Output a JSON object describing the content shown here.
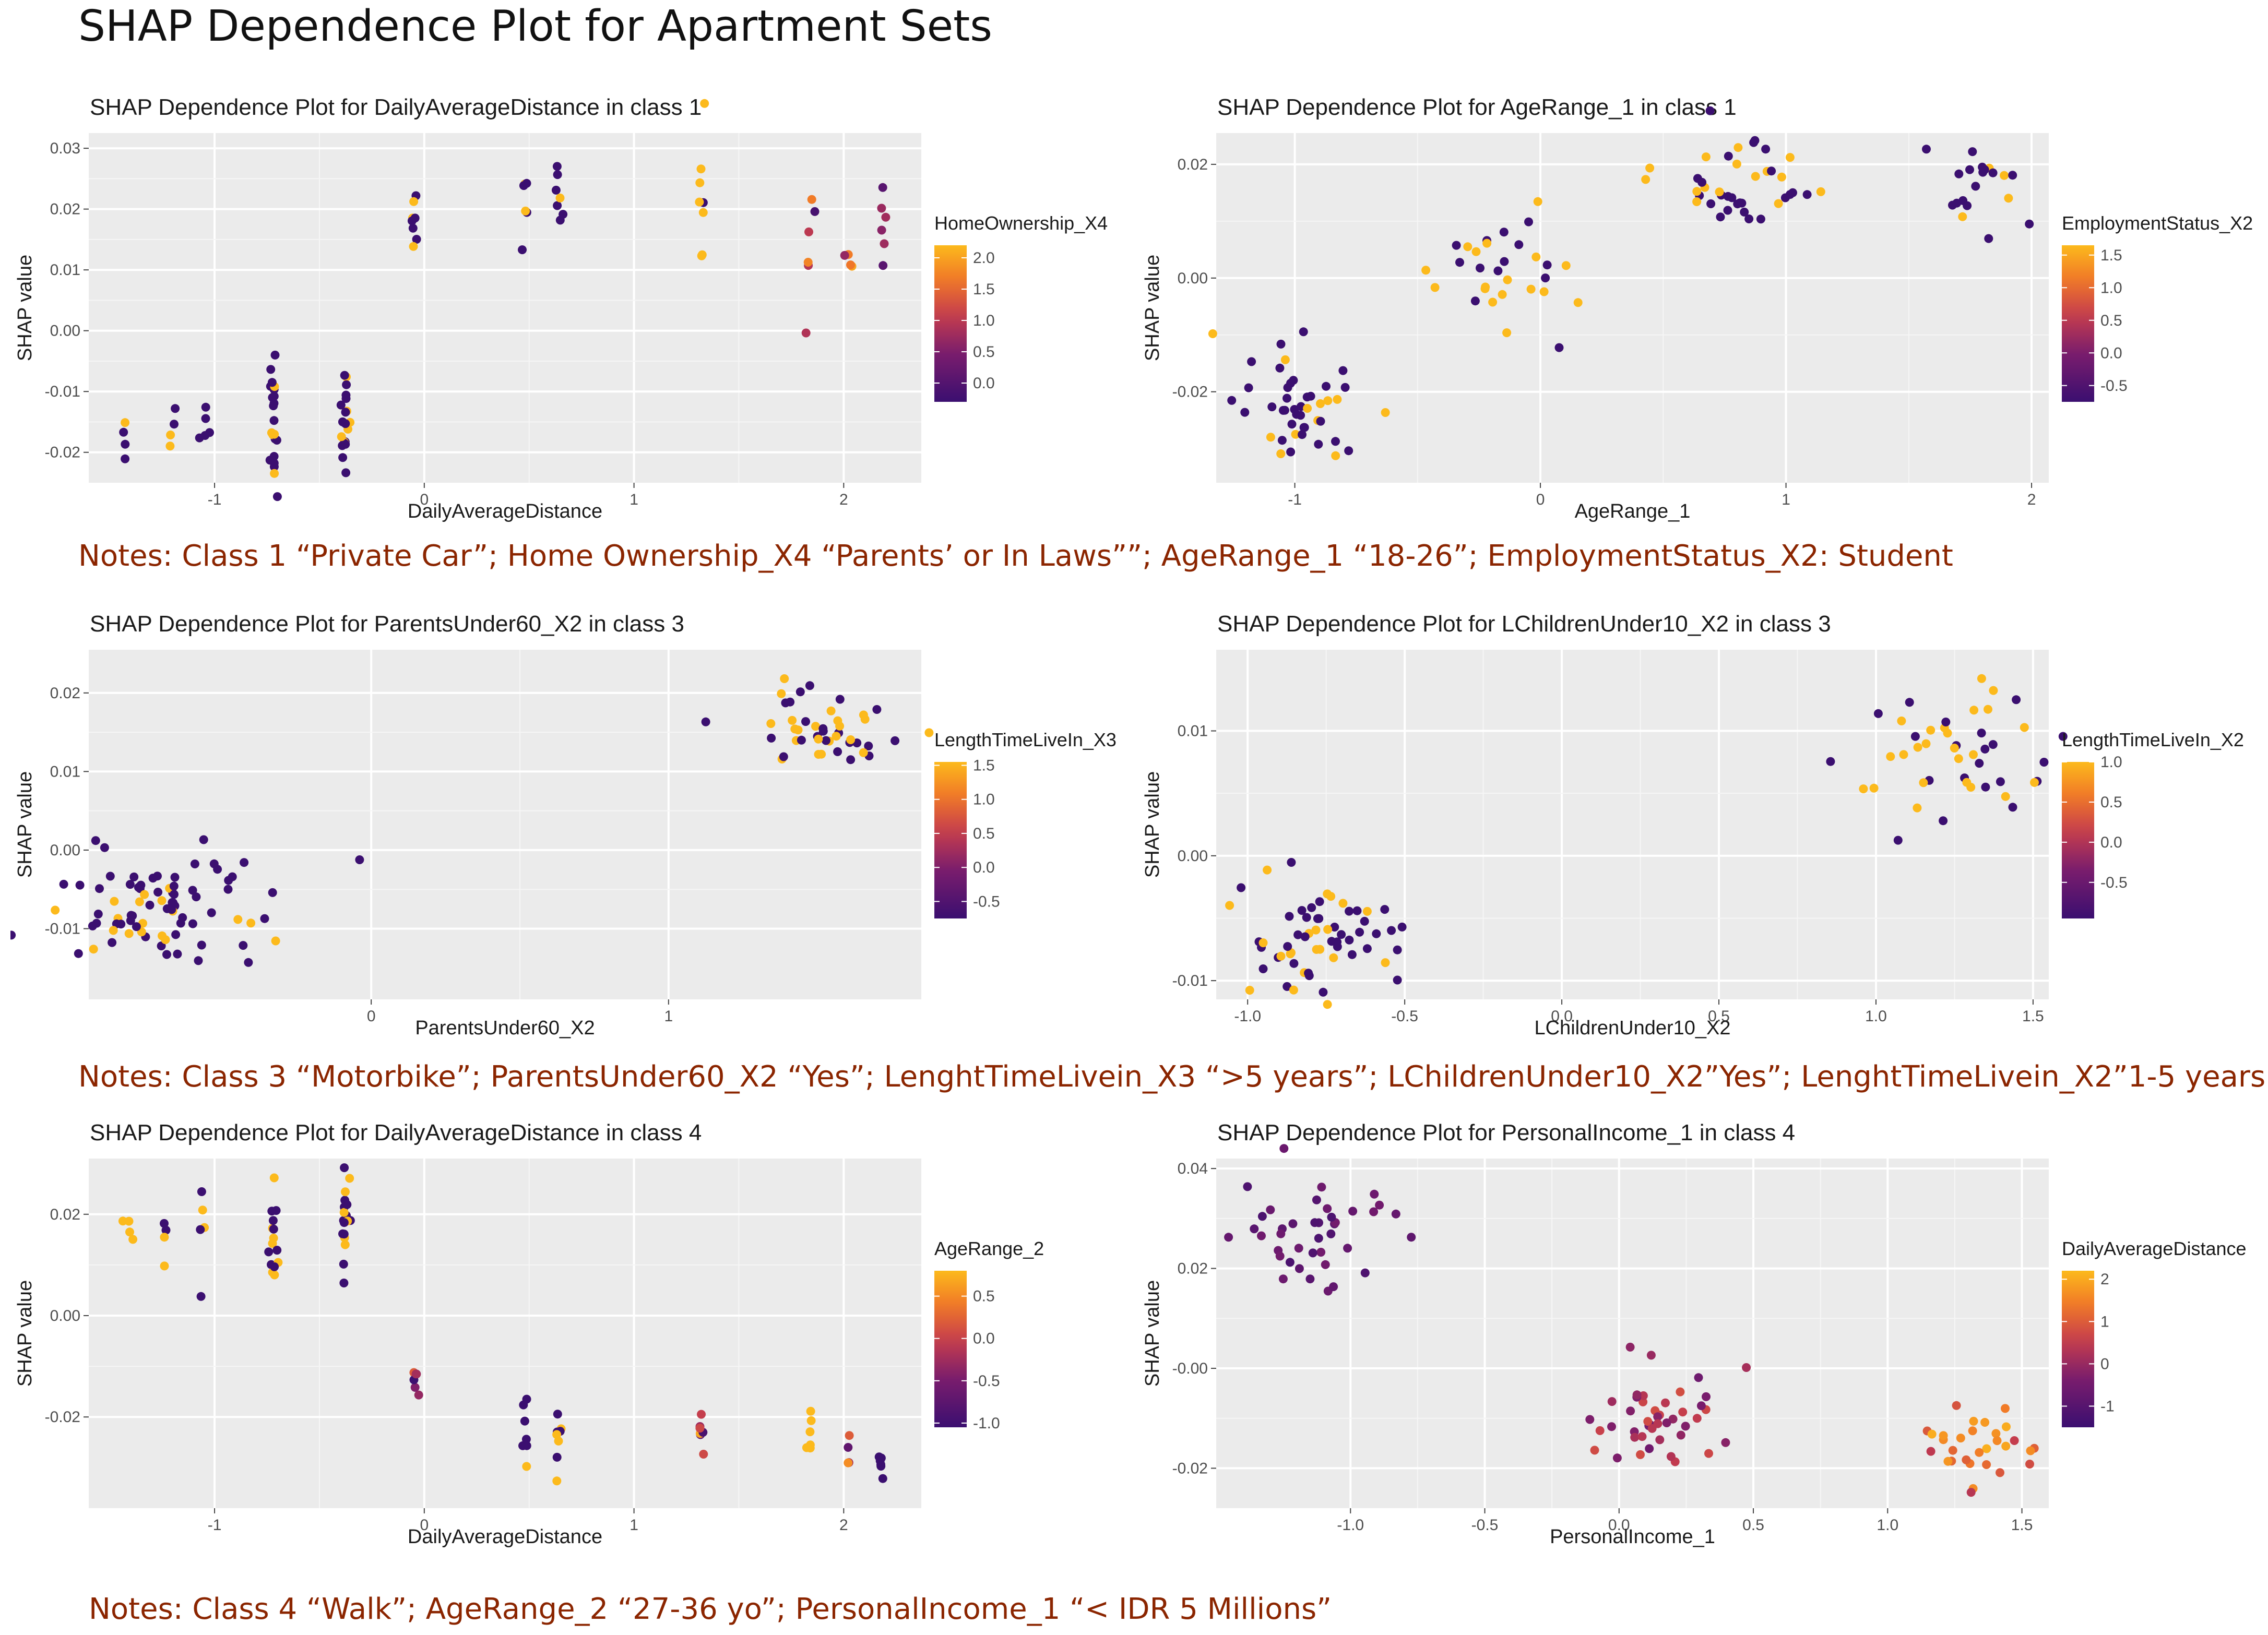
{
  "page": {
    "title": "SHAP Dependence Plot for Apartment Sets",
    "notes": [
      "Notes: Class 1 “Private Car”; Home Ownership_X4 “Parents’ or In Laws””; AgeRange_1 “18-26”; EmploymentStatus_X2: Student",
      "Notes: Class 3 “Motorbike”; ParentsUnder60_X2 “Yes”; LenghtTimeLivein_X3 “>5 years”; LChildrenUnder10_X2”Yes”; LenghtTimeLivein_X2”1-5 years”",
      "Notes: Class 4 “Walk”; AgeRange_2 “27-36 yo”; PersonalIncome_1 “< IDR 5 Millions”"
    ]
  },
  "colors": {
    "low": "#3b0f70",
    "mid": "#d1415a",
    "high": "#fbb61a",
    "panel_bg": "#ebebeb",
    "note": "#8b2500"
  },
  "chart_data": [
    {
      "type": "scatter",
      "title": "SHAP Dependence Plot for DailyAverageDistance in class 1",
      "xlabel": "DailyAverageDistance",
      "ylabel": "SHAP value",
      "xlim": [
        -1.6,
        2.37
      ],
      "ylim": [
        -0.025,
        0.0325
      ],
      "xticks": [
        -1,
        0,
        1,
        2
      ],
      "xtick_labels": [
        "-1",
        "0",
        "1",
        "2"
      ],
      "yticks": [
        -0.02,
        -0.01,
        0.0,
        0.01,
        0.02,
        0.03
      ],
      "ytick_labels": [
        "-0.02",
        "-0.01",
        "0.00",
        "0.01",
        "0.02",
        "0.03"
      ],
      "legend": {
        "title": "HomeOwnership_X4",
        "range": [
          -0.3,
          2.2
        ],
        "ticks": [
          0.0,
          0.5,
          1.0,
          1.5,
          2.0
        ],
        "tick_labels": [
          "0.0",
          "0.5",
          "1.0",
          "1.5",
          "2.0"
        ]
      },
      "clusters": [
        {
          "cx": -1.43,
          "cy": -0.017,
          "sx": 0.01,
          "sy": 0.003,
          "n": 4,
          "c": [
            -0.3,
            2.2
          ],
          "hf": 0.3
        },
        {
          "cx": -1.2,
          "cy": -0.0165,
          "sx": 0.01,
          "sy": 0.003,
          "n": 4,
          "c": [
            -0.3,
            2.2
          ],
          "hf": 0.3
        },
        {
          "cx": -1.05,
          "cy": -0.016,
          "sx": 0.01,
          "sy": 0.003,
          "n": 5,
          "c": [
            -0.3,
            2.2
          ],
          "hf": 0.1
        },
        {
          "cx": -0.72,
          "cy": -0.016,
          "sx": 0.01,
          "sy": 0.006,
          "n": 22,
          "c": [
            -0.3,
            2.2
          ],
          "hf": 0.15
        },
        {
          "cx": -0.38,
          "cy": -0.015,
          "sx": 0.01,
          "sy": 0.006,
          "n": 20,
          "c": [
            -0.3,
            2.2
          ],
          "hf": 0.2
        },
        {
          "cx": -0.04,
          "cy": 0.016,
          "sx": 0.01,
          "sy": 0.0035,
          "n": 8,
          "c": [
            -0.3,
            2.2
          ],
          "hf": 0.5
        },
        {
          "cx": 0.48,
          "cy": 0.017,
          "sx": 0.01,
          "sy": 0.0035,
          "n": 6,
          "c": [
            -0.3,
            2.2
          ],
          "hf": 0.4
        },
        {
          "cx": 0.64,
          "cy": 0.02,
          "sx": 0.01,
          "sy": 0.006,
          "n": 7,
          "c": [
            -0.3,
            2.2
          ],
          "hf": 0.1
        },
        {
          "cx": 1.32,
          "cy": 0.022,
          "sx": 0.01,
          "sy": 0.006,
          "n": 8,
          "c": [
            -0.3,
            2.2
          ],
          "hf": 0.8
        },
        {
          "cx": 1.84,
          "cy": 0.013,
          "sx": 0.01,
          "sy": 0.006,
          "n": 6,
          "c": [
            -0.3,
            2.2
          ],
          "hf": 0.0
        },
        {
          "cx": 2.03,
          "cy": 0.012,
          "sx": 0.01,
          "sy": 0.002,
          "n": 4,
          "c": [
            -0.3,
            2.2
          ],
          "hf": 0.0
        },
        {
          "cx": 2.18,
          "cy": 0.02,
          "sx": 0.01,
          "sy": 0.005,
          "n": 6,
          "c": [
            -0.3,
            2.2
          ],
          "hf": 0.0
        }
      ]
    },
    {
      "type": "scatter",
      "title": "SHAP Dependence Plot for AgeRange_1 in class 1",
      "xlabel": "AgeRange_1",
      "ylabel": "SHAP value",
      "xlim": [
        -1.32,
        2.07
      ],
      "ylim": [
        -0.036,
        0.0255
      ],
      "xticks": [
        -1,
        0,
        1,
        2
      ],
      "xtick_labels": [
        "-1",
        "0",
        "1",
        "2"
      ],
      "yticks": [
        -0.02,
        0.0,
        0.02
      ],
      "ytick_labels": [
        "-0.02",
        "0.00",
        "0.02"
      ],
      "legend": {
        "title": "EmploymentStatus_X2",
        "range": [
          -0.75,
          1.65
        ],
        "ticks": [
          -0.5,
          0.0,
          0.5,
          1.0,
          1.5
        ],
        "tick_labels": [
          "-0.5",
          "0.0",
          "0.5",
          "1.0",
          "1.5"
        ]
      },
      "clusters": [
        {
          "cx": -1.0,
          "cy": -0.023,
          "sx": 0.12,
          "sy": 0.005,
          "n": 45,
          "c": [
            -0.75,
            1.65
          ],
          "hf": 0.3
        },
        {
          "cx": -0.17,
          "cy": 0.001,
          "sx": 0.14,
          "sy": 0.005,
          "n": 30,
          "c": [
            -0.75,
            1.65
          ],
          "hf": 0.45
        },
        {
          "cx": 0.8,
          "cy": 0.017,
          "sx": 0.15,
          "sy": 0.004,
          "n": 40,
          "c": [
            -0.75,
            1.65
          ],
          "hf": 0.4
        },
        {
          "cx": 1.75,
          "cy": 0.016,
          "sx": 0.1,
          "sy": 0.0035,
          "n": 20,
          "c": [
            -0.75,
            1.65
          ],
          "hf": 0.2
        }
      ]
    },
    {
      "type": "scatter",
      "title": "SHAP Dependence Plot for ParentsUnder60_X2 in class 3",
      "xlabel": "ParentsUnder60_X2",
      "ylabel": "SHAP value",
      "xlim": [
        -0.95,
        1.85
      ],
      "ylim": [
        -0.019,
        0.0255
      ],
      "xticks": [
        0,
        1
      ],
      "xtick_labels": [
        "0",
        "1"
      ],
      "yticks": [
        -0.01,
        0.0,
        0.01,
        0.02
      ],
      "ytick_labels": [
        "-0.01",
        "0.00",
        "0.01",
        "0.02"
      ],
      "legend": {
        "title": "LengthTimeLiveIn_X3",
        "range": [
          -0.75,
          1.55
        ],
        "ticks": [
          -0.5,
          0.0,
          0.5,
          1.0,
          1.5
        ],
        "tick_labels": [
          "-0.5",
          "0.0",
          "0.5",
          "1.0",
          "1.5"
        ]
      },
      "clusters": [
        {
          "cx": -0.7,
          "cy": -0.0075,
          "sx": 0.18,
          "sy": 0.0035,
          "n": 80,
          "c": [
            -0.75,
            1.55
          ],
          "hf": 0.25
        },
        {
          "cx": 1.5,
          "cy": 0.0155,
          "sx": 0.15,
          "sy": 0.003,
          "n": 45,
          "c": [
            -0.75,
            1.55
          ],
          "hf": 0.55
        }
      ]
    },
    {
      "type": "scatter",
      "title": "SHAP Dependence Plot for LChildrenUnder10_X2 in class 3",
      "xlabel": "LChildrenUnder10_X2",
      "ylabel": "SHAP value",
      "xlim": [
        -1.1,
        1.55
      ],
      "ylim": [
        -0.0115,
        0.0165
      ],
      "xticks": [
        -1.0,
        -0.5,
        0.0,
        0.5,
        1.0,
        1.5
      ],
      "xtick_labels": [
        "-1.0",
        "-0.5",
        "0.0",
        "0.5",
        "1.0",
        "1.5"
      ],
      "yticks": [
        -0.01,
        0.0,
        0.01
      ],
      "ytick_labels": [
        "-0.01",
        "0.00",
        "0.01"
      ],
      "legend": {
        "title": "LengthTimeLiveIn_X2",
        "range": [
          -0.95,
          1.0
        ],
        "ticks": [
          -0.5,
          0.0,
          0.5,
          1.0
        ],
        "tick_labels": [
          "-0.5",
          "0.0",
          "0.5",
          "1.0"
        ]
      },
      "clusters": [
        {
          "cx": -0.8,
          "cy": -0.006,
          "sx": 0.14,
          "sy": 0.0025,
          "n": 60,
          "c": [
            -0.95,
            1.0
          ],
          "hf": 0.4
        },
        {
          "cx": 1.25,
          "cy": 0.008,
          "sx": 0.15,
          "sy": 0.003,
          "n": 45,
          "c": [
            -0.95,
            1.0
          ],
          "hf": 0.55
        }
      ]
    },
    {
      "type": "scatter",
      "title": "SHAP Dependence Plot for DailyAverageDistance in class 4",
      "xlabel": "DailyAverageDistance",
      "ylabel": "SHAP value",
      "xlim": [
        -1.6,
        2.37
      ],
      "ylim": [
        -0.038,
        0.031
      ],
      "xticks": [
        -1,
        0,
        1,
        2
      ],
      "xtick_labels": [
        "-1",
        "0",
        "1",
        "2"
      ],
      "yticks": [
        -0.02,
        0.0,
        0.02
      ],
      "ytick_labels": [
        "-0.02",
        "0.00",
        "0.02"
      ],
      "legend": {
        "title": "AgeRange_2",
        "range": [
          -1.05,
          0.8
        ],
        "ticks": [
          -1.0,
          -0.5,
          0.0,
          0.5
        ],
        "tick_labels": [
          "-1.0",
          "-0.5",
          "0.0",
          "0.5"
        ]
      },
      "clusters": [
        {
          "cx": -1.42,
          "cy": 0.0165,
          "sx": 0.01,
          "sy": 0.002,
          "n": 4,
          "c": [
            -1.05,
            0.8
          ],
          "hf": 1.0
        },
        {
          "cx": -1.23,
          "cy": 0.015,
          "sx": 0.01,
          "sy": 0.003,
          "n": 4,
          "c": [
            -1.05,
            0.8
          ],
          "hf": 0.5
        },
        {
          "cx": -1.06,
          "cy": 0.016,
          "sx": 0.01,
          "sy": 0.005,
          "n": 5,
          "c": [
            -1.05,
            0.8
          ],
          "hf": 0.5
        },
        {
          "cx": -0.72,
          "cy": 0.016,
          "sx": 0.01,
          "sy": 0.005,
          "n": 16,
          "c": [
            -1.05,
            0.8
          ],
          "hf": 0.55
        },
        {
          "cx": -0.38,
          "cy": 0.016,
          "sx": 0.01,
          "sy": 0.007,
          "n": 18,
          "c": [
            -1.05,
            0.8
          ],
          "hf": 0.45
        },
        {
          "cx": -0.04,
          "cy": -0.013,
          "sx": 0.01,
          "sy": 0.002,
          "n": 6,
          "c": [
            -1.05,
            0.8
          ],
          "hf": 0.0
        },
        {
          "cx": 0.48,
          "cy": -0.018,
          "sx": 0.01,
          "sy": 0.007,
          "n": 7,
          "c": [
            -1.05,
            0.8
          ],
          "hf": 0.1
        },
        {
          "cx": 0.64,
          "cy": -0.022,
          "sx": 0.01,
          "sy": 0.004,
          "n": 8,
          "c": [
            -1.05,
            0.8
          ],
          "hf": 0.2
        },
        {
          "cx": 1.32,
          "cy": -0.022,
          "sx": 0.01,
          "sy": 0.004,
          "n": 7,
          "c": [
            -1.05,
            0.8
          ],
          "hf": 0.0
        },
        {
          "cx": 1.84,
          "cy": -0.025,
          "sx": 0.01,
          "sy": 0.004,
          "n": 6,
          "c": [
            -1.05,
            0.8
          ],
          "hf": 0.7
        },
        {
          "cx": 2.03,
          "cy": -0.028,
          "sx": 0.01,
          "sy": 0.004,
          "n": 4,
          "c": [
            -1.05,
            0.8
          ],
          "hf": 0.0
        },
        {
          "cx": 2.18,
          "cy": -0.03,
          "sx": 0.01,
          "sy": 0.004,
          "n": 6,
          "c": [
            -1.05,
            0.8
          ],
          "hf": 0.4
        }
      ]
    },
    {
      "type": "scatter",
      "title": "SHAP Dependence Plot for PersonalIncome_1 in class 4",
      "xlabel": "PersonalIncome_1",
      "ylabel": "SHAP value",
      "xlim": [
        -1.5,
        1.6
      ],
      "ylim": [
        -0.028,
        0.042
      ],
      "xticks": [
        -1.0,
        -0.5,
        0.0,
        0.5,
        1.0,
        1.5
      ],
      "xtick_labels": [
        "-1.0",
        "-0.5",
        "0.0",
        "0.5",
        "1.0",
        "1.5"
      ],
      "yticks": [
        -0.02,
        0.0,
        0.02,
        0.04
      ],
      "ytick_labels": [
        "-0.02",
        "-0.00",
        "0.02",
        "0.04"
      ],
      "legend": {
        "title": "DailyAverageDistance",
        "range": [
          -1.5,
          2.2
        ],
        "ticks": [
          -1,
          0,
          1,
          2
        ],
        "tick_labels": [
          "-1",
          "0",
          "1",
          "2"
        ]
      },
      "clusters": [
        {
          "cx": -1.12,
          "cy": 0.028,
          "sx": 0.14,
          "sy": 0.006,
          "n": 40,
          "c": [
            -1.2,
            -0.5
          ],
          "hf": 0.0
        },
        {
          "cx": 0.12,
          "cy": -0.01,
          "sx": 0.12,
          "sy": 0.005,
          "n": 45,
          "c": [
            -0.6,
            0.8
          ],
          "hf": 0.0
        },
        {
          "cx": 1.3,
          "cy": -0.016,
          "sx": 0.12,
          "sy": 0.005,
          "n": 30,
          "c": [
            0.3,
            2.1
          ],
          "hf": 0.0
        }
      ]
    }
  ]
}
